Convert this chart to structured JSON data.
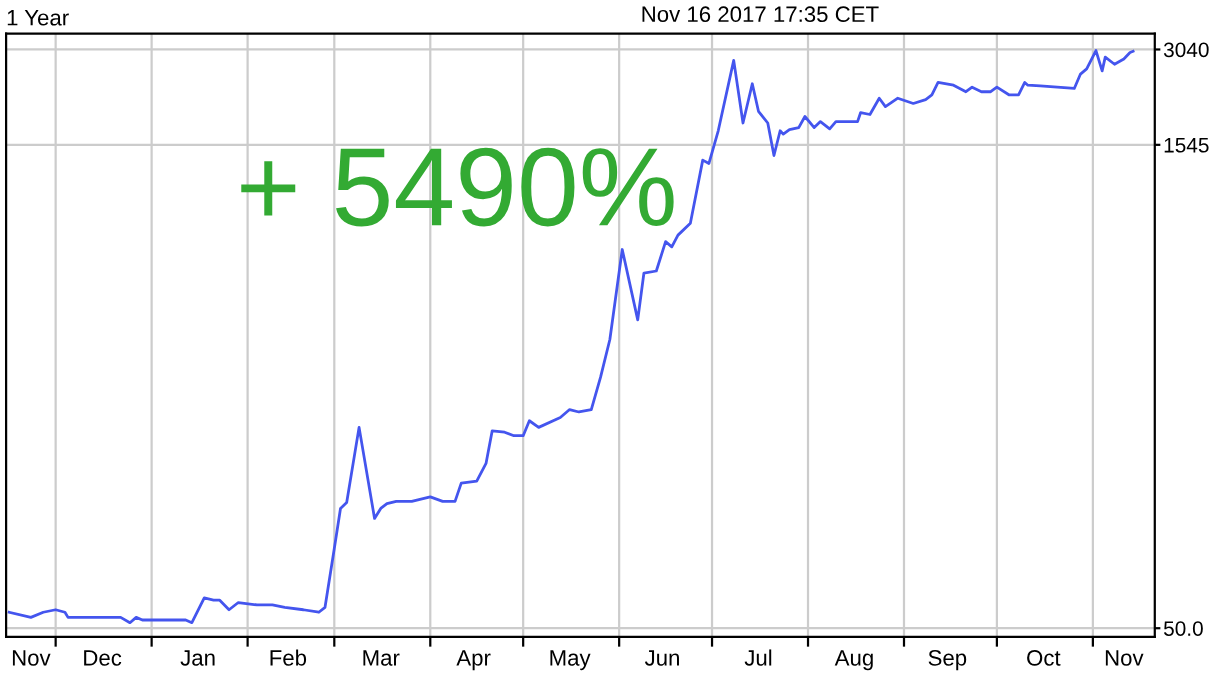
{
  "chart_data": {
    "type": "line",
    "title": "1 Year",
    "annotations": [
      "Nov 16 2017 17:35 CET",
      "+ 5490%"
    ],
    "x": [
      "2016-11-16",
      "2016-11-23",
      "2016-11-27",
      "2016-12-01",
      "2016-12-04",
      "2016-12-05",
      "2016-12-22",
      "2016-12-25",
      "2016-12-27",
      "2016-12-29",
      "2017-01-01",
      "2017-01-12",
      "2017-01-14",
      "2017-01-18",
      "2017-01-21",
      "2017-01-23",
      "2017-01-26",
      "2017-01-29",
      "2017-02-04",
      "2017-02-09",
      "2017-02-13",
      "2017-02-19",
      "2017-02-24",
      "2017-02-26",
      "2017-03-01",
      "2017-03-03",
      "2017-03-05",
      "2017-03-09",
      "2017-03-14",
      "2017-03-16",
      "2017-03-18",
      "2017-03-21",
      "2017-03-26",
      "2017-04-01",
      "2017-04-05",
      "2017-04-09",
      "2017-04-11",
      "2017-04-16",
      "2017-04-19",
      "2017-04-21",
      "2017-04-25",
      "2017-04-28",
      "2017-05-01",
      "2017-05-03",
      "2017-05-06",
      "2017-05-13",
      "2017-05-16",
      "2017-05-19",
      "2017-05-23",
      "2017-05-26",
      "2017-05-29",
      "2017-06-02",
      "2017-06-07",
      "2017-06-09",
      "2017-06-13",
      "2017-06-16",
      "2017-06-18",
      "2017-06-20",
      "2017-06-24",
      "2017-06-28",
      "2017-06-30",
      "2017-07-03",
      "2017-07-08",
      "2017-07-11",
      "2017-07-14",
      "2017-07-16",
      "2017-07-19",
      "2017-07-21",
      "2017-07-23",
      "2017-07-24",
      "2017-07-26",
      "2017-07-29",
      "2017-07-31",
      "2017-08-03",
      "2017-08-05",
      "2017-08-08",
      "2017-08-10",
      "2017-08-17",
      "2017-08-18",
      "2017-08-21",
      "2017-08-24",
      "2017-08-26",
      "2017-08-30",
      "2017-09-04",
      "2017-09-08",
      "2017-09-10",
      "2017-09-12",
      "2017-09-17",
      "2017-09-21",
      "2017-09-23",
      "2017-09-26",
      "2017-09-29",
      "2017-10-01",
      "2017-10-05",
      "2017-10-08",
      "2017-10-10",
      "2017-10-11",
      "2017-10-15",
      "2017-10-26",
      "2017-10-28",
      "2017-10-30",
      "2017-11-02",
      "2017-11-04",
      "2017-11-05",
      "2017-11-08",
      "2017-11-11",
      "2017-11-13",
      "2017-11-14"
    ],
    "series": [
      {
        "color": "#4455ee",
        "values": [
          56,
          54,
          56,
          57,
          56,
          54,
          54,
          52,
          54,
          53,
          53,
          53,
          52,
          62,
          61,
          61,
          57,
          60,
          59,
          59,
          58,
          57,
          56,
          58,
          88,
          117,
          122,
          208,
          109,
          117,
          121,
          123,
          123,
          127,
          123,
          123,
          140,
          142,
          161,
          203,
          201,
          196,
          196,
          218,
          208,
          223,
          236,
          232,
          236,
          297,
          388,
          735,
          446,
          622,
          631,
          777,
          749,
          814,
          885,
          1386,
          1354,
          1707,
          2813,
          1804,
          2383,
          1960,
          1804,
          1432,
          1707,
          1667,
          1722,
          1746,
          1889,
          1746,
          1822,
          1730,
          1822,
          1822,
          1943,
          1916,
          2151,
          2026,
          2151,
          2072,
          2130,
          2201,
          2405,
          2359,
          2252,
          2326,
          2252,
          2252,
          2326,
          2201,
          2201,
          2405,
          2359,
          2349,
          2305,
          2553,
          2648,
          3017,
          2612,
          2879,
          2737,
          2840,
          2975,
          3001
        ]
      }
    ],
    "log": "y",
    "ylim": [
      47,
      3400
    ],
    "yticks": [
      {
        "value": 50,
        "label": "50.0"
      },
      1545,
      3040
    ],
    "xlim": [
      "2016-11-15",
      "2017-11-21"
    ],
    "xticks": [
      {
        "value": "2016-12-01",
        "label": null
      },
      {
        "value": "2017-01-01",
        "label": null
      },
      {
        "value": "2017-02-01",
        "label": null
      },
      {
        "value": "2017-03-01",
        "label": null
      },
      {
        "value": "2017-04-01",
        "label": null
      },
      {
        "value": "2017-05-01",
        "label": null
      },
      {
        "value": "2017-06-01",
        "label": null
      },
      {
        "value": "2017-07-01",
        "label": null
      },
      {
        "value": "2017-08-01",
        "label": null
      },
      {
        "value": "2017-09-01",
        "label": null
      },
      {
        "value": "2017-10-01",
        "label": null
      },
      {
        "value": "2017-11-01",
        "label": null
      },
      {
        "value": "2016-11-23",
        "label": "Nov"
      },
      {
        "value": "2016-12-16",
        "label": "Dec"
      },
      {
        "value": "2017-01-16",
        "label": "Jan"
      },
      {
        "value": "2017-02-14",
        "label": "Feb"
      },
      {
        "value": "2017-03-16",
        "label": "Mar"
      },
      {
        "value": "2017-04-15",
        "label": "Apr"
      },
      {
        "value": "2017-05-16",
        "label": "May"
      },
      {
        "value": "2017-06-15",
        "label": "Jun"
      },
      {
        "value": "2017-07-16",
        "label": "Jul"
      },
      {
        "value": "2017-08-16",
        "label": "Aug"
      },
      {
        "value": "2017-09-15",
        "label": "Sep"
      },
      {
        "value": "2017-10-16",
        "label": "Oct"
      },
      {
        "value": "2017-11-11",
        "label": "Nov"
      }
    ],
    "grid": true,
    "line_style": "solid",
    "marker": "none"
  }
}
